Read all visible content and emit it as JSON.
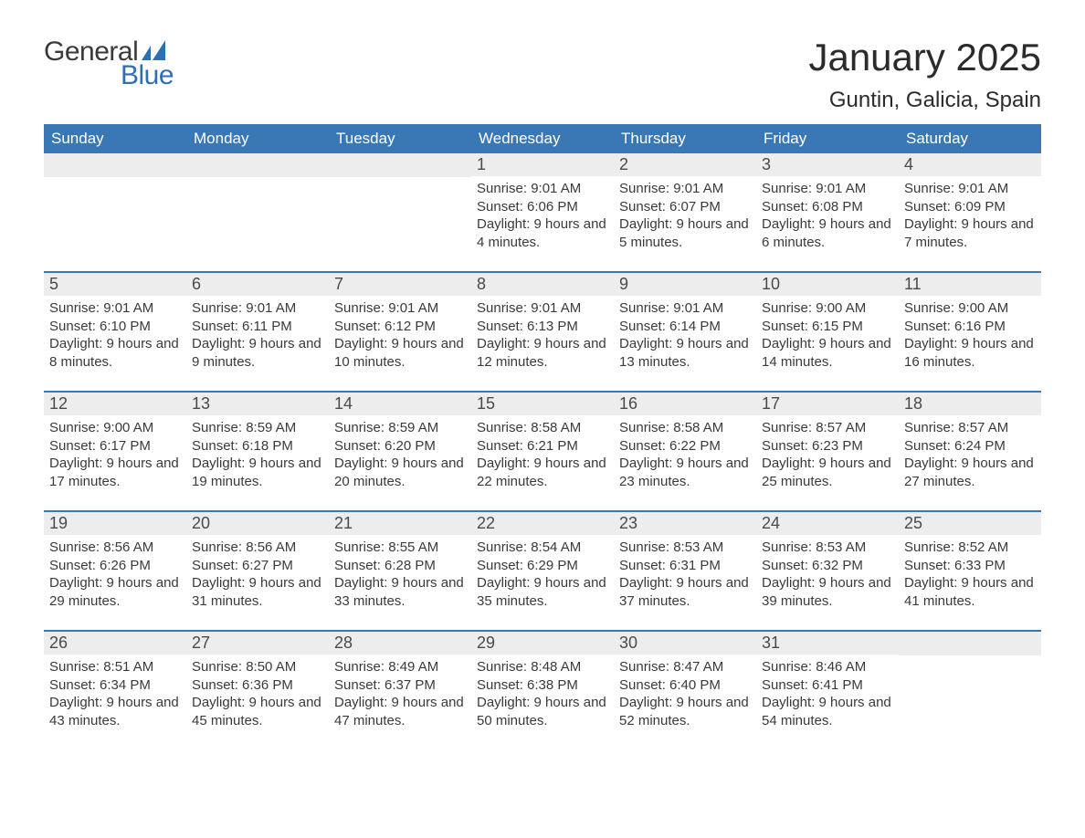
{
  "brand": {
    "word1": "General",
    "word2": "Blue",
    "accent_color": "#2d6fb3",
    "text_color": "#3a3a3a"
  },
  "header": {
    "title": "January 2025",
    "subtitle": "Guntin, Galicia, Spain"
  },
  "styling": {
    "header_bar_color": "#3a78b5",
    "header_text_color": "#ffffff",
    "daynum_bg": "#ededed",
    "daynum_color": "#4a4a4a",
    "body_text_color": "#3a3a3a",
    "rule_color": "#3a78b5",
    "page_bg": "#ffffff",
    "title_fontsize": 42,
    "subtitle_fontsize": 24,
    "weekday_fontsize": 17,
    "daynum_fontsize": 18,
    "body_fontsize": 15
  },
  "weekdays": [
    "Sunday",
    "Monday",
    "Tuesday",
    "Wednesday",
    "Thursday",
    "Friday",
    "Saturday"
  ],
  "weeks": [
    [
      null,
      null,
      null,
      {
        "n": "1",
        "sunrise": "9:01 AM",
        "sunset": "6:06 PM",
        "daylight": "9 hours and 4 minutes."
      },
      {
        "n": "2",
        "sunrise": "9:01 AM",
        "sunset": "6:07 PM",
        "daylight": "9 hours and 5 minutes."
      },
      {
        "n": "3",
        "sunrise": "9:01 AM",
        "sunset": "6:08 PM",
        "daylight": "9 hours and 6 minutes."
      },
      {
        "n": "4",
        "sunrise": "9:01 AM",
        "sunset": "6:09 PM",
        "daylight": "9 hours and 7 minutes."
      }
    ],
    [
      {
        "n": "5",
        "sunrise": "9:01 AM",
        "sunset": "6:10 PM",
        "daylight": "9 hours and 8 minutes."
      },
      {
        "n": "6",
        "sunrise": "9:01 AM",
        "sunset": "6:11 PM",
        "daylight": "9 hours and 9 minutes."
      },
      {
        "n": "7",
        "sunrise": "9:01 AM",
        "sunset": "6:12 PM",
        "daylight": "9 hours and 10 minutes."
      },
      {
        "n": "8",
        "sunrise": "9:01 AM",
        "sunset": "6:13 PM",
        "daylight": "9 hours and 12 minutes."
      },
      {
        "n": "9",
        "sunrise": "9:01 AM",
        "sunset": "6:14 PM",
        "daylight": "9 hours and 13 minutes."
      },
      {
        "n": "10",
        "sunrise": "9:00 AM",
        "sunset": "6:15 PM",
        "daylight": "9 hours and 14 minutes."
      },
      {
        "n": "11",
        "sunrise": "9:00 AM",
        "sunset": "6:16 PM",
        "daylight": "9 hours and 16 minutes."
      }
    ],
    [
      {
        "n": "12",
        "sunrise": "9:00 AM",
        "sunset": "6:17 PM",
        "daylight": "9 hours and 17 minutes."
      },
      {
        "n": "13",
        "sunrise": "8:59 AM",
        "sunset": "6:18 PM",
        "daylight": "9 hours and 19 minutes."
      },
      {
        "n": "14",
        "sunrise": "8:59 AM",
        "sunset": "6:20 PM",
        "daylight": "9 hours and 20 minutes."
      },
      {
        "n": "15",
        "sunrise": "8:58 AM",
        "sunset": "6:21 PM",
        "daylight": "9 hours and 22 minutes."
      },
      {
        "n": "16",
        "sunrise": "8:58 AM",
        "sunset": "6:22 PM",
        "daylight": "9 hours and 23 minutes."
      },
      {
        "n": "17",
        "sunrise": "8:57 AM",
        "sunset": "6:23 PM",
        "daylight": "9 hours and 25 minutes."
      },
      {
        "n": "18",
        "sunrise": "8:57 AM",
        "sunset": "6:24 PM",
        "daylight": "9 hours and 27 minutes."
      }
    ],
    [
      {
        "n": "19",
        "sunrise": "8:56 AM",
        "sunset": "6:26 PM",
        "daylight": "9 hours and 29 minutes."
      },
      {
        "n": "20",
        "sunrise": "8:56 AM",
        "sunset": "6:27 PM",
        "daylight": "9 hours and 31 minutes."
      },
      {
        "n": "21",
        "sunrise": "8:55 AM",
        "sunset": "6:28 PM",
        "daylight": "9 hours and 33 minutes."
      },
      {
        "n": "22",
        "sunrise": "8:54 AM",
        "sunset": "6:29 PM",
        "daylight": "9 hours and 35 minutes."
      },
      {
        "n": "23",
        "sunrise": "8:53 AM",
        "sunset": "6:31 PM",
        "daylight": "9 hours and 37 minutes."
      },
      {
        "n": "24",
        "sunrise": "8:53 AM",
        "sunset": "6:32 PM",
        "daylight": "9 hours and 39 minutes."
      },
      {
        "n": "25",
        "sunrise": "8:52 AM",
        "sunset": "6:33 PM",
        "daylight": "9 hours and 41 minutes."
      }
    ],
    [
      {
        "n": "26",
        "sunrise": "8:51 AM",
        "sunset": "6:34 PM",
        "daylight": "9 hours and 43 minutes."
      },
      {
        "n": "27",
        "sunrise": "8:50 AM",
        "sunset": "6:36 PM",
        "daylight": "9 hours and 45 minutes."
      },
      {
        "n": "28",
        "sunrise": "8:49 AM",
        "sunset": "6:37 PM",
        "daylight": "9 hours and 47 minutes."
      },
      {
        "n": "29",
        "sunrise": "8:48 AM",
        "sunset": "6:38 PM",
        "daylight": "9 hours and 50 minutes."
      },
      {
        "n": "30",
        "sunrise": "8:47 AM",
        "sunset": "6:40 PM",
        "daylight": "9 hours and 52 minutes."
      },
      {
        "n": "31",
        "sunrise": "8:46 AM",
        "sunset": "6:41 PM",
        "daylight": "9 hours and 54 minutes."
      },
      null
    ]
  ],
  "labels": {
    "sunrise_prefix": "Sunrise: ",
    "sunset_prefix": "Sunset: ",
    "daylight_prefix": "Daylight: "
  }
}
